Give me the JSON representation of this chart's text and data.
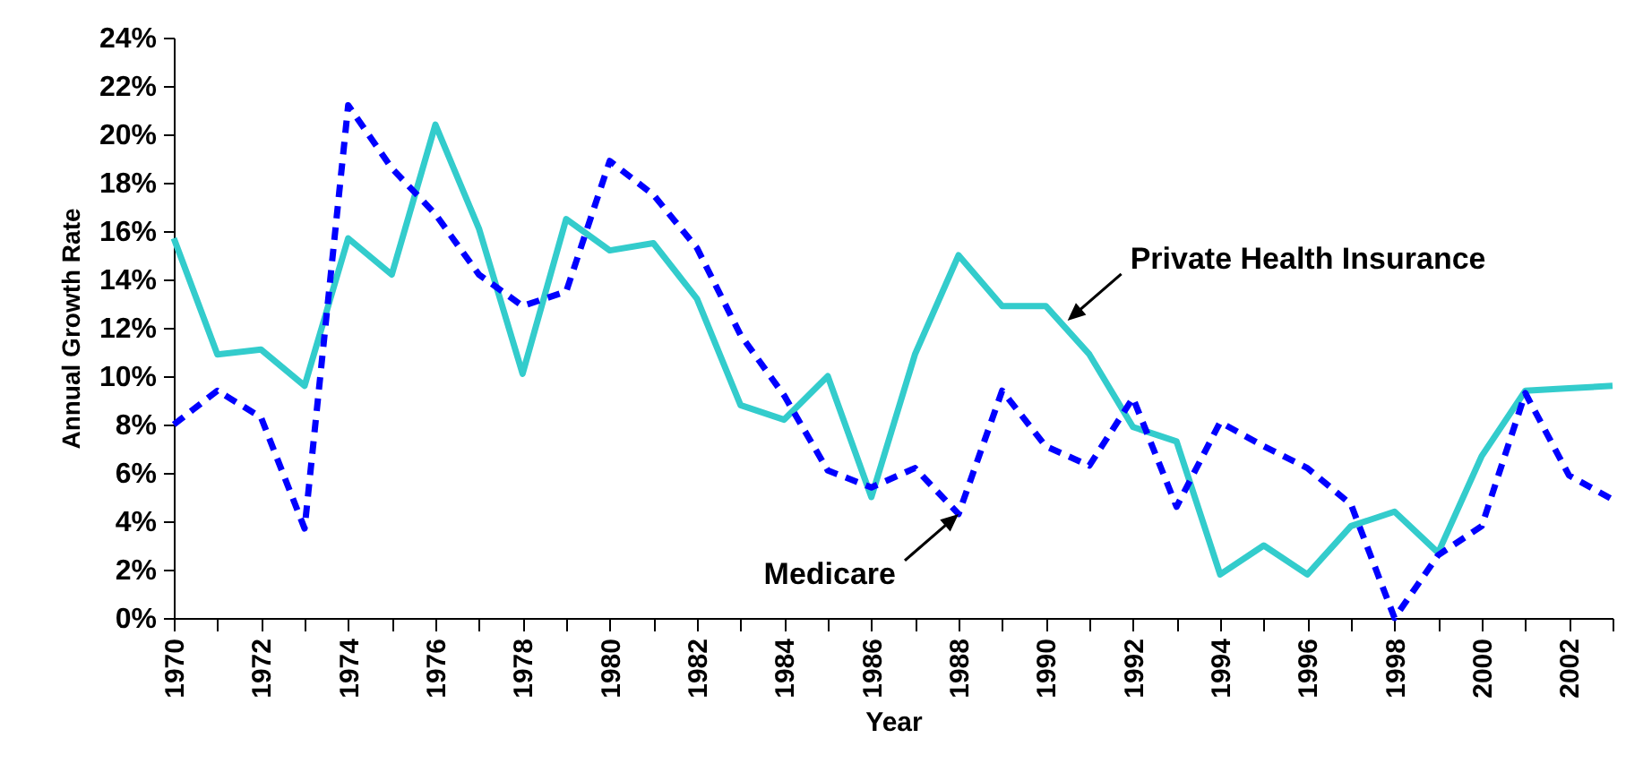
{
  "chart_data": {
    "type": "line",
    "xlabel": "Year",
    "ylabel": "Annual Growth Rate",
    "x": [
      1970,
      1971,
      1972,
      1973,
      1974,
      1975,
      1976,
      1977,
      1978,
      1979,
      1980,
      1981,
      1982,
      1983,
      1984,
      1985,
      1986,
      1987,
      1988,
      1989,
      1990,
      1991,
      1992,
      1993,
      1994,
      1995,
      1996,
      1997,
      1998,
      1999,
      2000,
      2001,
      2002,
      2003
    ],
    "series": [
      {
        "color": "#33cccc",
        "line_style": "solid",
        "values": [
          15.7,
          10.9,
          11.1,
          9.6,
          15.7,
          14.2,
          20.4,
          16.1,
          10.1,
          16.5,
          15.2,
          15.5,
          13.2,
          8.8,
          8.2,
          10.0,
          5.0,
          10.9,
          15.0,
          12.9,
          12.9,
          10.9,
          7.9,
          7.3,
          1.8,
          3.0,
          1.8,
          3.8,
          4.4,
          2.7,
          6.7,
          9.4,
          9.5,
          9.6
        ]
      },
      {
        "color": "#0000ff",
        "line_style": "dashed",
        "values": [
          8.0,
          9.4,
          8.3,
          3.7,
          21.2,
          18.6,
          16.7,
          14.2,
          12.9,
          13.5,
          18.9,
          17.5,
          15.3,
          11.7,
          9.2,
          6.1,
          5.4,
          6.2,
          4.3,
          9.4,
          7.1,
          6.3,
          9.1,
          4.6,
          8.1,
          7.1,
          6.2,
          4.7,
          0.0,
          2.6,
          3.8,
          9.3,
          5.9,
          4.9
        ]
      }
    ],
    "annotations": [
      {
        "text": "Private Health Insurance",
        "x": 1990.5,
        "y": 12.3
      },
      {
        "text": "Medicare",
        "x": 1988,
        "y": 4.3
      }
    ],
    "xlim": [
      1970,
      2003
    ],
    "xticks": [
      1970,
      {
        "value": 1971,
        "label": null
      },
      1972,
      {
        "value": 1973,
        "label": null
      },
      1974,
      {
        "value": 1975,
        "label": null
      },
      1976,
      {
        "value": 1977,
        "label": null
      },
      1978,
      {
        "value": 1979,
        "label": null
      },
      1980,
      {
        "value": 1981,
        "label": null
      },
      1982,
      {
        "value": 1983,
        "label": null
      },
      1984,
      {
        "value": 1985,
        "label": null
      },
      1986,
      {
        "value": 1987,
        "label": null
      },
      1988,
      {
        "value": 1989,
        "label": null
      },
      1990,
      {
        "value": 1991,
        "label": null
      },
      1992,
      {
        "value": 1993,
        "label": null
      },
      1994,
      {
        "value": 1995,
        "label": null
      },
      1996,
      {
        "value": 1997,
        "label": null
      },
      1998,
      {
        "value": 1999,
        "label": null
      },
      2000,
      {
        "value": 2001,
        "label": null
      },
      2002,
      {
        "value": 2003,
        "label": null
      }
    ],
    "ylim": [
      0,
      24
    ],
    "yticks": [
      {
        "value": 0,
        "label": "0%"
      },
      {
        "value": 2,
        "label": "2%"
      },
      {
        "value": 4,
        "label": "4%"
      },
      {
        "value": 6,
        "label": "6%"
      },
      {
        "value": 8,
        "label": "8%"
      },
      {
        "value": 10,
        "label": "10%"
      },
      {
        "value": 12,
        "label": "12%"
      },
      {
        "value": 14,
        "label": "14%"
      },
      {
        "value": 16,
        "label": "16%"
      },
      {
        "value": 18,
        "label": "18%"
      },
      {
        "value": 20,
        "label": "20%"
      },
      {
        "value": 22,
        "label": "22%"
      },
      {
        "value": 24,
        "label": "24%"
      }
    ],
    "grid": false,
    "marker": "none"
  }
}
